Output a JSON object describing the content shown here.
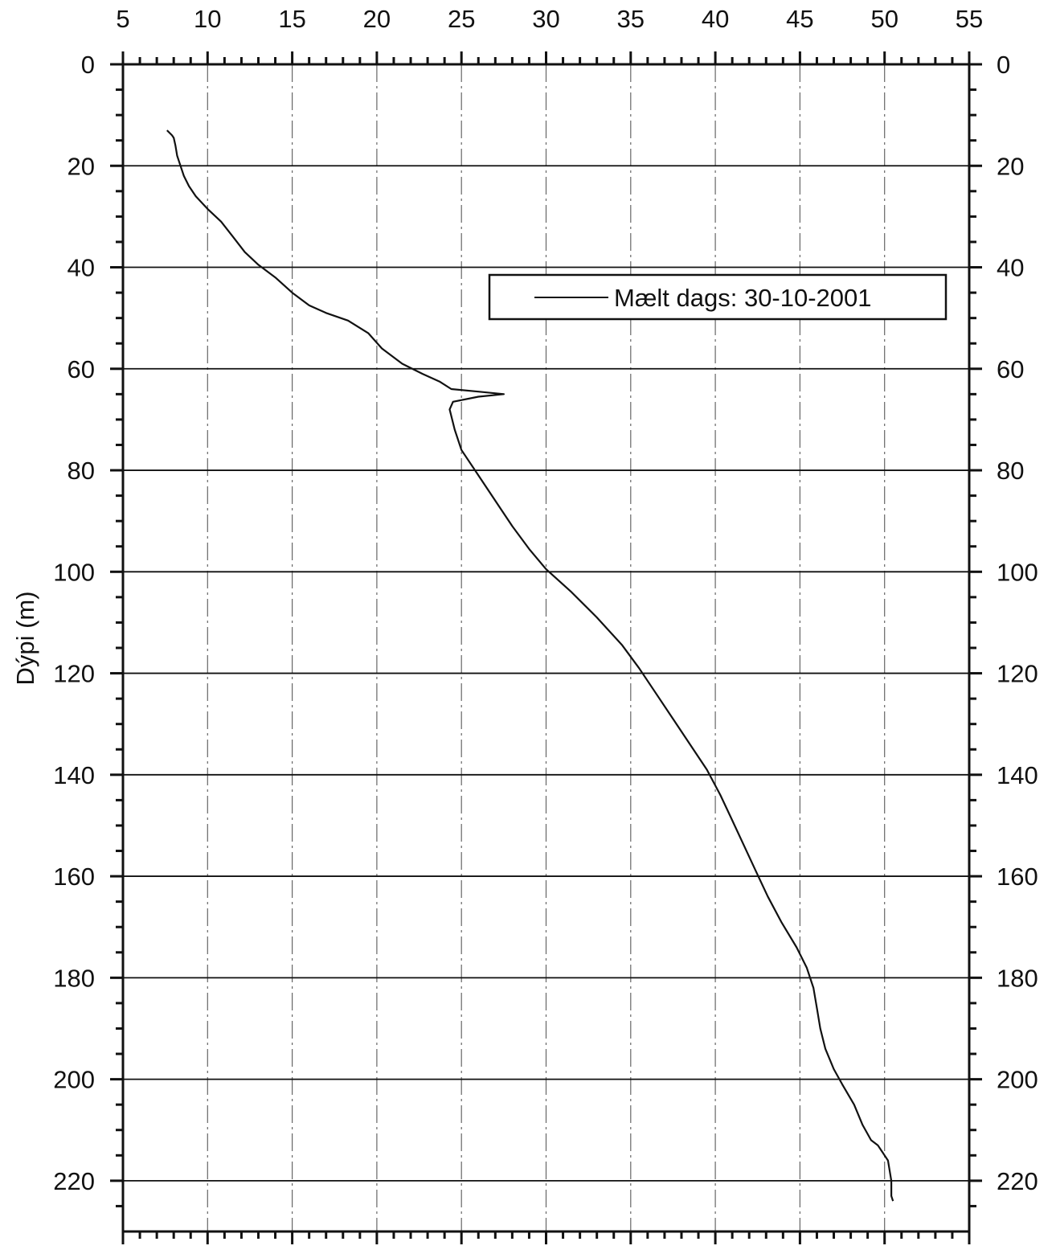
{
  "chart_data": {
    "type": "line",
    "title": "",
    "xlabel": "",
    "ylabel": "Dýpi (m)",
    "xlim": [
      5,
      55
    ],
    "ylim": [
      0,
      230
    ],
    "y_inverted": true,
    "x_axis_position": "top",
    "right_axis_mirrored": true,
    "x_ticks": [
      5,
      10,
      15,
      20,
      25,
      30,
      35,
      40,
      45,
      50,
      55
    ],
    "y_ticks": [
      0,
      20,
      40,
      60,
      80,
      100,
      120,
      140,
      160,
      180,
      200,
      220
    ],
    "grid": {
      "horizontal": "solid",
      "vertical": "dashed"
    },
    "legend": {
      "placement": "upper-right-center",
      "entries": [
        "Mælt dags: 30-10-2001"
      ]
    },
    "series": [
      {
        "name": "Mælt dags: 30-10-2001",
        "color": "#111111",
        "x": [
          7.6,
          7.9,
          8.0,
          8.1,
          8.2,
          8.4,
          8.6,
          8.9,
          9.3,
          10.0,
          10.8,
          11.5,
          12.2,
          13.0,
          14.0,
          15.0,
          16.0,
          17.0,
          18.3,
          19.5,
          20.3,
          21.5,
          22.7,
          23.7,
          24.4,
          26.0,
          27.5,
          26.0,
          24.5,
          24.3,
          24.6,
          25.0,
          26.0,
          27.0,
          28.0,
          29.0,
          30.0,
          31.5,
          33.0,
          34.5,
          35.5,
          36.5,
          37.5,
          38.5,
          39.5,
          40.3,
          41.0,
          41.7,
          42.4,
          43.1,
          43.9,
          44.8,
          45.4,
          45.8,
          46.0,
          46.2,
          46.5,
          47.0,
          47.5,
          48.2,
          48.7,
          49.2,
          49.6,
          49.8,
          49.9,
          50.0,
          50.2,
          50.3,
          50.4,
          50.4,
          50.5
        ],
        "y": [
          13,
          14,
          14.5,
          16,
          18,
          20,
          22,
          24,
          26,
          28.5,
          31,
          34,
          37,
          39.5,
          42,
          45,
          47.5,
          49,
          50.5,
          53,
          56,
          59,
          61,
          62.5,
          64,
          64.5,
          65,
          65.5,
          66.5,
          68,
          72,
          76,
          81,
          86,
          91,
          95.5,
          99.5,
          104,
          109,
          114.5,
          119,
          124,
          129,
          134,
          139,
          144,
          149,
          154,
          159,
          164,
          169,
          174,
          178,
          182,
          186,
          190,
          194,
          198,
          201,
          205,
          209,
          212,
          213,
          214,
          214.5,
          215,
          216,
          218,
          220,
          223,
          224
        ]
      }
    ]
  }
}
